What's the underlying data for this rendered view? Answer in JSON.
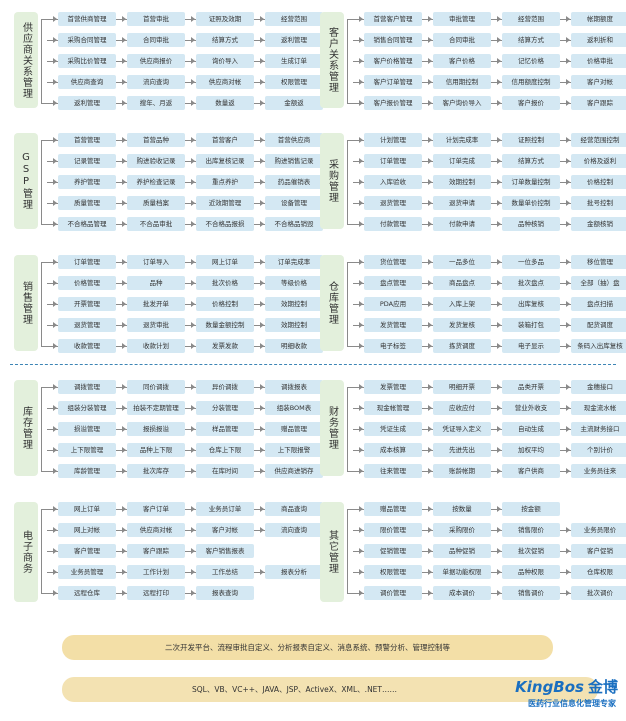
{
  "modules": [
    {
      "title": "供应商关系管理",
      "rows": [
        [
          "首营供商管理",
          "首营审批",
          "证照及效期",
          "经营范围"
        ],
        [
          "采购合同管理",
          "合同审批",
          "结算方式",
          "返利管理"
        ],
        [
          "采购比价管理",
          "供应商报价",
          "询价导入",
          "生成订单"
        ],
        [
          "供应商查询",
          "流向查询",
          "供应商对帐",
          "权限管理"
        ],
        [
          "返利管理",
          "搜年、月返",
          "数量返",
          "金额返"
        ]
      ]
    },
    {
      "title": "客户关系管理",
      "rows": [
        [
          "首营客户管理",
          "审批管理",
          "经营范围",
          "帐期额度"
        ],
        [
          "销售合同管理",
          "合同审批",
          "结算方式",
          "返利折和"
        ],
        [
          "客户价格管理",
          "客户价格",
          "记忆价格",
          "价格审批"
        ],
        [
          "客户订单管理",
          "信用期控制",
          "信用额度控制",
          "客户对帐"
        ],
        [
          "客户报价管理",
          "客户询价导入",
          "客户报价",
          "客户跟踪"
        ]
      ]
    },
    {
      "title": "GSP管理",
      "rows": [
        [
          "首营管理",
          "首营品种",
          "首营客户",
          "首营供应商"
        ],
        [
          "记录管理",
          "购进验收记录",
          "出库复核记录",
          "购进销售记录"
        ],
        [
          "养护管理",
          "养护检查记录",
          "重点养护",
          "药品催销表"
        ],
        [
          "质量管理",
          "质量档案",
          "近效期管理",
          "设备管理"
        ],
        [
          "不合格品管理",
          "不合品审批",
          "不合格品报损",
          "不合格品销毁"
        ]
      ]
    },
    {
      "title": "采购管理",
      "rows": [
        [
          "计划管理",
          "计划完成率",
          "证照控制",
          "经营范围控制"
        ],
        [
          "订单管理",
          "订单完成",
          "结算方式",
          "价格及返利"
        ],
        [
          "入库验收",
          "效期控制",
          "订单数量控制",
          "价格控制"
        ],
        [
          "退货管理",
          "退货申请",
          "数量单价控制",
          "批号控制"
        ],
        [
          "付款管理",
          "付款申请",
          "品种核销",
          "金额核销"
        ]
      ]
    },
    {
      "title": "销售管理",
      "rows": [
        [
          "订单管理",
          "订单导入",
          "网上订单",
          "订单完成率"
        ],
        [
          "价格管理",
          "品种",
          "批次价格",
          "等级价格"
        ],
        [
          "开票管理",
          "批发开单",
          "价格控制",
          "效期控制"
        ],
        [
          "退货管理",
          "退货审批",
          "数量金额控制",
          "效期控制"
        ],
        [
          "收款管理",
          "收款计划",
          "发票发款",
          "明细收款"
        ]
      ]
    },
    {
      "title": "仓库管理",
      "rows": [
        [
          "货位管理",
          "一品多位",
          "一位多品",
          "移位管理"
        ],
        [
          "盘点管理",
          "商品盘点",
          "批次盘点",
          "全部（抽）盘"
        ],
        [
          "PDA应用",
          "入库上架",
          "出库复核",
          "盘点扫描"
        ],
        [
          "发货管理",
          "发货复核",
          "装箱打包",
          "配货调度"
        ],
        [
          "电子标签",
          "拣货调度",
          "电子显示",
          "条码入出库复核"
        ]
      ]
    },
    {
      "title": "库存管理",
      "rows": [
        [
          "调拨管理",
          "同价调拨",
          "异价调拨",
          "调拨报表"
        ],
        [
          "组装分装管理",
          "拍装不定期管理",
          "分装管理",
          "组装BOM表"
        ],
        [
          "损溢管理",
          "报损报溢",
          "样品管理",
          "赠品管理"
        ],
        [
          "上下限管理",
          "品种上下限",
          "仓库上下限",
          "上下限报警"
        ],
        [
          "库龄管理",
          "批次库存",
          "在库时间",
          "供应商进销存"
        ]
      ]
    },
    {
      "title": "财务管理",
      "rows": [
        [
          "发票管理",
          "明细开票",
          "品类开票",
          "金穗接口"
        ],
        [
          "现金帐管理",
          "应收应付",
          "营业外收支",
          "现金流水帐"
        ],
        [
          "凭证生成",
          "凭证导入定义",
          "自动生成",
          "主流财务接口"
        ],
        [
          "成本核算",
          "先进先出",
          "加权平均",
          "个别计价"
        ],
        [
          "往来管理",
          "账龄帐期",
          "客户供商",
          "业务员往来"
        ]
      ]
    },
    {
      "title": "电子商务",
      "rows": [
        [
          "网上订单",
          "客户订单",
          "业务员订单",
          "商品查询"
        ],
        [
          "网上对帐",
          "供应商对帐",
          "客户对帐",
          "流向查询"
        ],
        [
          "客户管理",
          "客户跟踪",
          "客户销售报表"
        ],
        [
          "业务员管理",
          "工作计划",
          "工作总结",
          "报表分析"
        ],
        [
          "远程仓库",
          "远程打印",
          "报表查询"
        ]
      ]
    },
    {
      "title": "其它管理",
      "rows": [
        [
          "赠品管理",
          "按数量",
          "按金额"
        ],
        [
          "限价管理",
          "采购限价",
          "销售限价",
          "业务员限价"
        ],
        [
          "促销管理",
          "品种促销",
          "批次促销",
          "客户促销"
        ],
        [
          "权限管理",
          "单据功能权限",
          "品种权限",
          "仓库权限"
        ],
        [
          "调价管理",
          "成本调价",
          "销售调价",
          "批次调价"
        ]
      ]
    }
  ],
  "banner1": "二次开发平台、流程审批自定义、分析报表自定义、消息系统、预警分析、管理控制等",
  "banner2": "SQL、VB、VC++、JAVA、JSP、ActiveX、XML、.NET……",
  "logo": {
    "brand": "KingBos",
    "brand_cn": "金博",
    "slogan": "医药行业信息化管理专家",
    "color": "#1a6fc0"
  }
}
